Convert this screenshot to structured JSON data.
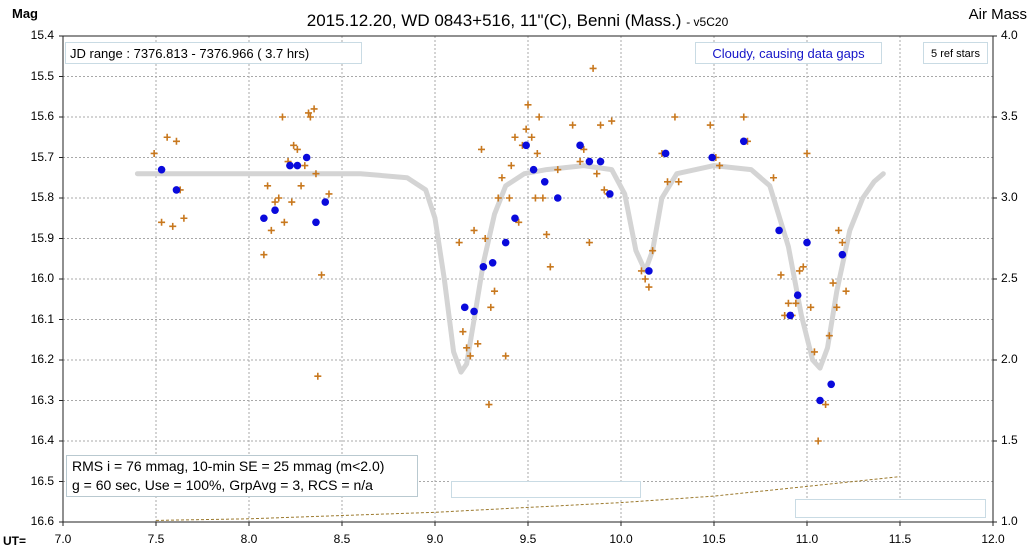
{
  "header": {
    "title": "2015.12.20, WD 0843+516, 11\"(C), Benni (Mass.)",
    "version": "- v5C20",
    "y_label_left": "Mag",
    "y_label_right": "Air Mass",
    "x_label": "UT="
  },
  "annotations": {
    "jd_range": "JD range : 7376.813 - 7376.966 ( 3.7 hrs)",
    "note": "Cloudy, causing data gaps",
    "ref_stars": "5 ref stars",
    "stats_line1": "RMS i = 76 mmag, 10-min SE = 25 mmag (m<2.0)",
    "stats_line2": "g = 60 sec, Use = 100%, GrpAvg = 3, RCS = n/a"
  },
  "colors": {
    "raw_points": "#c8781e",
    "group_avg": "#0a0adc",
    "model_curve": "#d4d4d4",
    "airmass": "#9c7a2e",
    "grid": "#a8a8a8",
    "note_text": "#1414c8"
  },
  "chart_data": {
    "type": "scatter",
    "xlim": [
      7.0,
      12.0
    ],
    "ylim": [
      15.4,
      16.6
    ],
    "y_inverted": true,
    "y2lim": [
      1.0,
      4.0
    ],
    "grid": true,
    "x_ticks": [
      "7.0",
      "7.5",
      "8.0",
      "8.5",
      "9.0",
      "9.5",
      "10.0",
      "10.5",
      "11.0",
      "11.5",
      "12.0"
    ],
    "y_ticks": [
      "15.4",
      "15.5",
      "15.6",
      "15.7",
      "15.8",
      "15.9",
      "16.0",
      "16.1",
      "16.2",
      "16.3",
      "16.4",
      "16.5",
      "16.6"
    ],
    "y2_ticks": [
      "4.0",
      "3.5",
      "3.0",
      "2.5",
      "2.0",
      "1.5",
      "1.0"
    ],
    "series": [
      {
        "marker": "plus",
        "points": [
          [
            7.49,
            15.69
          ],
          [
            7.53,
            15.86
          ],
          [
            7.56,
            15.65
          ],
          [
            7.59,
            15.87
          ],
          [
            7.61,
            15.66
          ],
          [
            7.63,
            15.78
          ],
          [
            7.65,
            15.85
          ],
          [
            8.08,
            15.94
          ],
          [
            8.1,
            15.77
          ],
          [
            8.12,
            15.88
          ],
          [
            8.14,
            15.81
          ],
          [
            8.16,
            15.8
          ],
          [
            8.18,
            15.6
          ],
          [
            8.19,
            15.86
          ],
          [
            8.21,
            15.71
          ],
          [
            8.23,
            15.81
          ],
          [
            8.24,
            15.67
          ],
          [
            8.26,
            15.68
          ],
          [
            8.28,
            15.77
          ],
          [
            8.3,
            15.72
          ],
          [
            8.32,
            15.59
          ],
          [
            8.33,
            15.6
          ],
          [
            8.35,
            15.58
          ],
          [
            8.36,
            15.74
          ],
          [
            8.37,
            16.24
          ],
          [
            8.39,
            15.99
          ],
          [
            8.43,
            15.79
          ],
          [
            9.13,
            15.91
          ],
          [
            9.15,
            16.13
          ],
          [
            9.17,
            16.17
          ],
          [
            9.19,
            16.19
          ],
          [
            9.21,
            15.88
          ],
          [
            9.23,
            16.16
          ],
          [
            9.25,
            15.68
          ],
          [
            9.27,
            15.9
          ],
          [
            9.29,
            16.31
          ],
          [
            9.3,
            16.07
          ],
          [
            9.32,
            16.03
          ],
          [
            9.34,
            15.8
          ],
          [
            9.36,
            15.75
          ],
          [
            9.38,
            16.19
          ],
          [
            9.4,
            15.8
          ],
          [
            9.41,
            15.72
          ],
          [
            9.43,
            15.65
          ],
          [
            9.45,
            15.86
          ],
          [
            9.47,
            15.67
          ],
          [
            9.49,
            15.63
          ],
          [
            9.5,
            15.57
          ],
          [
            9.52,
            15.65
          ],
          [
            9.54,
            15.8
          ],
          [
            9.55,
            15.69
          ],
          [
            9.56,
            15.6
          ],
          [
            9.58,
            15.8
          ],
          [
            9.6,
            15.89
          ],
          [
            9.62,
            15.97
          ],
          [
            9.66,
            15.73
          ],
          [
            9.74,
            15.62
          ],
          [
            9.78,
            15.71
          ],
          [
            9.8,
            15.68
          ],
          [
            9.83,
            15.91
          ],
          [
            9.85,
            15.48
          ],
          [
            9.87,
            15.74
          ],
          [
            9.89,
            15.62
          ],
          [
            9.91,
            15.78
          ],
          [
            9.93,
            15.79
          ],
          [
            9.95,
            15.61
          ],
          [
            10.11,
            15.98
          ],
          [
            10.13,
            16.0
          ],
          [
            10.15,
            16.02
          ],
          [
            10.17,
            15.93
          ],
          [
            10.22,
            15.69
          ],
          [
            10.25,
            15.76
          ],
          [
            10.29,
            15.6
          ],
          [
            10.31,
            15.76
          ],
          [
            10.48,
            15.62
          ],
          [
            10.51,
            15.7
          ],
          [
            10.53,
            15.72
          ],
          [
            10.66,
            15.6
          ],
          [
            10.68,
            15.66
          ],
          [
            10.82,
            15.75
          ],
          [
            10.86,
            15.99
          ],
          [
            10.88,
            16.09
          ],
          [
            10.9,
            16.06
          ],
          [
            10.92,
            16.09
          ],
          [
            10.94,
            16.06
          ],
          [
            10.96,
            15.98
          ],
          [
            10.98,
            15.97
          ],
          [
            11.0,
            15.69
          ],
          [
            11.02,
            16.07
          ],
          [
            11.04,
            16.18
          ],
          [
            11.06,
            16.4
          ],
          [
            11.1,
            16.31
          ],
          [
            11.12,
            16.14
          ],
          [
            11.14,
            16.01
          ],
          [
            11.16,
            16.07
          ],
          [
            11.17,
            15.88
          ],
          [
            11.19,
            15.91
          ],
          [
            11.21,
            16.03
          ]
        ]
      },
      {
        "marker": "dot",
        "points": [
          [
            7.53,
            15.73
          ],
          [
            7.61,
            15.78
          ],
          [
            8.08,
            15.85
          ],
          [
            8.14,
            15.83
          ],
          [
            8.22,
            15.72
          ],
          [
            8.26,
            15.72
          ],
          [
            8.31,
            15.7
          ],
          [
            8.36,
            15.86
          ],
          [
            8.41,
            15.81
          ],
          [
            9.16,
            16.07
          ],
          [
            9.21,
            16.08
          ],
          [
            9.26,
            15.97
          ],
          [
            9.31,
            15.96
          ],
          [
            9.38,
            15.91
          ],
          [
            9.43,
            15.85
          ],
          [
            9.49,
            15.67
          ],
          [
            9.53,
            15.73
          ],
          [
            9.59,
            15.76
          ],
          [
            9.66,
            15.8
          ],
          [
            9.78,
            15.67
          ],
          [
            9.83,
            15.71
          ],
          [
            9.89,
            15.71
          ],
          [
            9.94,
            15.79
          ],
          [
            10.15,
            15.98
          ],
          [
            10.24,
            15.69
          ],
          [
            10.49,
            15.7
          ],
          [
            10.66,
            15.66
          ],
          [
            10.85,
            15.88
          ],
          [
            10.91,
            16.09
          ],
          [
            10.95,
            16.04
          ],
          [
            11.0,
            15.91
          ],
          [
            11.07,
            16.3
          ],
          [
            11.13,
            16.26
          ],
          [
            11.19,
            15.94
          ]
        ]
      },
      {
        "marker": "line",
        "points": [
          [
            7.4,
            15.74
          ],
          [
            7.8,
            15.74
          ],
          [
            8.2,
            15.74
          ],
          [
            8.6,
            15.74
          ],
          [
            8.85,
            15.75
          ],
          [
            8.95,
            15.78
          ],
          [
            9.0,
            15.85
          ],
          [
            9.05,
            16.0
          ],
          [
            9.1,
            16.18
          ],
          [
            9.14,
            16.23
          ],
          [
            9.17,
            16.21
          ],
          [
            9.21,
            16.1
          ],
          [
            9.26,
            15.96
          ],
          [
            9.32,
            15.84
          ],
          [
            9.38,
            15.77
          ],
          [
            9.48,
            15.74
          ],
          [
            9.6,
            15.73
          ],
          [
            9.8,
            15.72
          ],
          [
            9.95,
            15.73
          ],
          [
            10.02,
            15.79
          ],
          [
            10.08,
            15.93
          ],
          [
            10.13,
            15.98
          ],
          [
            10.17,
            15.93
          ],
          [
            10.22,
            15.8
          ],
          [
            10.3,
            15.74
          ],
          [
            10.5,
            15.72
          ],
          [
            10.7,
            15.73
          ],
          [
            10.8,
            15.77
          ],
          [
            10.9,
            15.92
          ],
          [
            10.97,
            16.09
          ],
          [
            11.03,
            16.2
          ],
          [
            11.07,
            16.22
          ],
          [
            11.11,
            16.17
          ],
          [
            11.16,
            16.03
          ],
          [
            11.23,
            15.88
          ],
          [
            11.3,
            15.8
          ],
          [
            11.36,
            15.76
          ],
          [
            11.41,
            15.74
          ]
        ]
      },
      {
        "axis": "y2",
        "marker": "dashed",
        "points": [
          [
            7.5,
            1.01
          ],
          [
            8.0,
            1.02
          ],
          [
            8.5,
            1.04
          ],
          [
            9.0,
            1.06
          ],
          [
            9.5,
            1.09
          ],
          [
            10.0,
            1.12
          ],
          [
            10.5,
            1.16
          ],
          [
            11.0,
            1.22
          ],
          [
            11.5,
            1.28
          ]
        ]
      }
    ]
  }
}
